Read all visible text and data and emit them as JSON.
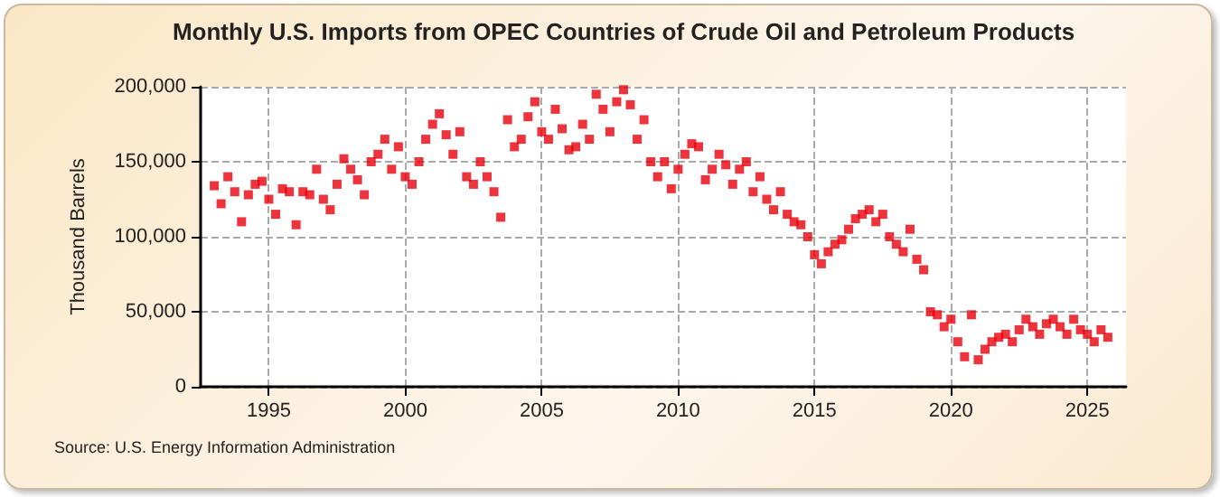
{
  "chart_data": {
    "type": "scatter",
    "title": "Monthly U.S. Imports from OPEC Countries of Crude Oil and Petroleum Products",
    "ylabel": "Thousand Barrels",
    "annotations": [
      "Source: U.S. Energy Information Administration"
    ],
    "x": [
      "1993-01",
      "1993-04",
      "1993-07",
      "1993-10",
      "1994-01",
      "1994-04",
      "1994-07",
      "1994-10",
      "1995-01",
      "1995-04",
      "1995-07",
      "1995-10",
      "1996-01",
      "1996-04",
      "1996-07",
      "1996-10",
      "1997-01",
      "1997-04",
      "1997-07",
      "1997-10",
      "1998-01",
      "1998-04",
      "1998-07",
      "1998-10",
      "1999-01",
      "1999-04",
      "1999-07",
      "1999-10",
      "2000-01",
      "2000-04",
      "2000-07",
      "2000-10",
      "2001-01",
      "2001-04",
      "2001-07",
      "2001-10",
      "2002-01",
      "2002-04",
      "2002-07",
      "2002-10",
      "2003-01",
      "2003-04",
      "2003-07",
      "2003-10",
      "2004-01",
      "2004-04",
      "2004-07",
      "2004-10",
      "2005-01",
      "2005-04",
      "2005-07",
      "2005-10",
      "2006-01",
      "2006-04",
      "2006-07",
      "2006-10",
      "2007-01",
      "2007-04",
      "2007-07",
      "2007-10",
      "2008-01",
      "2008-04",
      "2008-07",
      "2008-10",
      "2009-01",
      "2009-04",
      "2009-07",
      "2009-10",
      "2010-01",
      "2010-04",
      "2010-07",
      "2010-10",
      "2011-01",
      "2011-04",
      "2011-07",
      "2011-10",
      "2012-01",
      "2012-04",
      "2012-07",
      "2012-10",
      "2013-01",
      "2013-04",
      "2013-07",
      "2013-10",
      "2014-01",
      "2014-04",
      "2014-07",
      "2014-10",
      "2015-01",
      "2015-04",
      "2015-07",
      "2015-10",
      "2016-01",
      "2016-04",
      "2016-07",
      "2016-10",
      "2017-01",
      "2017-04",
      "2017-07",
      "2017-10",
      "2018-01",
      "2018-04",
      "2018-07",
      "2018-10",
      "2019-01",
      "2019-04",
      "2019-07",
      "2019-10",
      "2020-01",
      "2020-04",
      "2020-07",
      "2020-10",
      "2021-01",
      "2021-04",
      "2021-07",
      "2021-10",
      "2022-01",
      "2022-04",
      "2022-07",
      "2022-10",
      "2023-01",
      "2023-04",
      "2023-07",
      "2023-10",
      "2024-01",
      "2024-04",
      "2024-07",
      "2024-10",
      "2025-01",
      "2025-04",
      "2025-07",
      "2025-10"
    ],
    "series": [
      {
        "color": "#e8000b",
        "values": [
          134000,
          122000,
          140000,
          130000,
          110000,
          128000,
          135000,
          137000,
          125000,
          115000,
          132000,
          130000,
          108000,
          130000,
          128000,
          145000,
          125000,
          118000,
          135000,
          152000,
          145000,
          138000,
          128000,
          150000,
          155000,
          165000,
          145000,
          160000,
          140000,
          135000,
          150000,
          165000,
          175000,
          182000,
          168000,
          155000,
          170000,
          140000,
          135000,
          150000,
          140000,
          130000,
          113000,
          178000,
          160000,
          165000,
          180000,
          190000,
          170000,
          165000,
          185000,
          172000,
          158000,
          160000,
          175000,
          165000,
          195000,
          185000,
          170000,
          190000,
          198000,
          188000,
          165000,
          178000,
          150000,
          140000,
          150000,
          132000,
          145000,
          155000,
          162000,
          160000,
          138000,
          145000,
          155000,
          148000,
          135000,
          145000,
          150000,
          130000,
          140000,
          125000,
          118000,
          130000,
          115000,
          110000,
          108000,
          100000,
          88000,
          82000,
          90000,
          95000,
          98000,
          105000,
          112000,
          115000,
          118000,
          110000,
          115000,
          100000,
          95000,
          90000,
          105000,
          85000,
          78000,
          50000,
          48000,
          40000,
          45000,
          30000,
          20000,
          48000,
          18000,
          25000,
          30000,
          33000,
          35000,
          30000,
          38000,
          45000,
          40000,
          35000,
          42000,
          45000,
          40000,
          35000,
          45000,
          38000,
          35000,
          30000,
          38000,
          33000
        ]
      }
    ],
    "marker": "square",
    "grid": true,
    "xlim": [
      "1992-07",
      "2026-06"
    ],
    "xticks": [
      "1995",
      "2000",
      "2005",
      "2010",
      "2015",
      "2020",
      "2025"
    ],
    "ylim": [
      0,
      200000
    ],
    "yticks": [
      {
        "value": 0,
        "label": "0"
      },
      {
        "value": 50000,
        "label": "50,000"
      },
      {
        "value": 100000,
        "label": "100,000"
      },
      {
        "value": 150000,
        "label": "150,000"
      },
      {
        "value": 200000,
        "label": "200,000"
      }
    ]
  }
}
